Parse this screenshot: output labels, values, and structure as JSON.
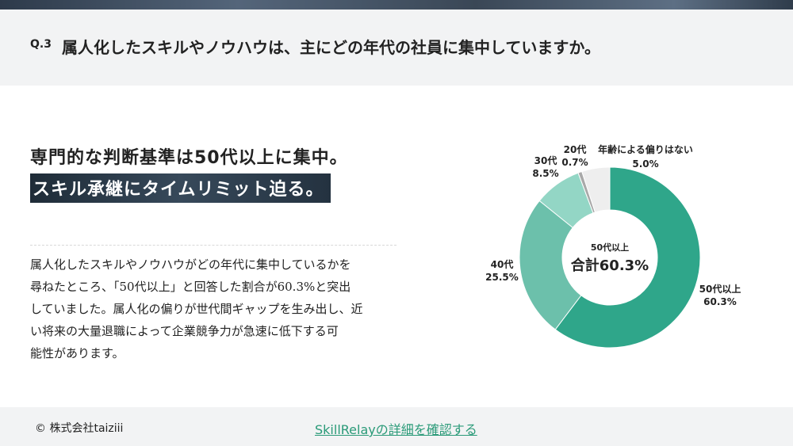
{
  "question": {
    "number": "Q.3",
    "text": "属人化したスキルやノウハウは、主にどの年代の社員に集中していますか。"
  },
  "headline": {
    "line1": "専門的な判断基準は50代以上に集中。",
    "line2": "スキル承継にタイムリミット迫る。"
  },
  "body": {
    "lines": [
      "属人化したスキルやノウハウがどの年代に集中しているかを",
      "尋ねたところ、「50代以上」と回答した割合が60.3%と突出",
      "していました。属人化の偏りが世代間ギャップを生み出し、近",
      "い将来の大量退職によって企業競争力が急速に低下する可",
      "能性があります。"
    ]
  },
  "chart_data": {
    "type": "pie",
    "categories": [
      "50代以上",
      "40代",
      "30代",
      "20代",
      "年齢による偏りはない"
    ],
    "values": [
      60.3,
      25.5,
      8.5,
      0.7,
      5.0
    ],
    "value_labels": [
      "60.3%",
      "25.5%",
      "8.5%",
      "0.7%",
      "5.0%"
    ],
    "colors": [
      "#2fa68a",
      "#6cc0ab",
      "#93d6c5",
      "#a9a9a9",
      "#eeeeee"
    ],
    "center_label": {
      "line1": "50代以上",
      "line2": "合計60.3%"
    }
  },
  "footer": {
    "copyright": "© 株式会社taiziii",
    "link_text": "SkillRelayの詳細を確認する"
  }
}
